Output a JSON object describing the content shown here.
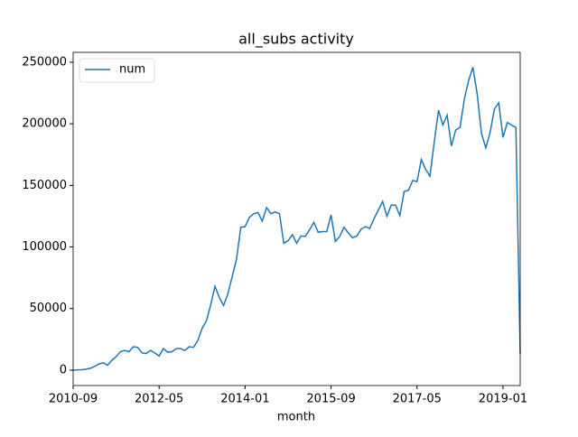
{
  "chart_data": {
    "type": "line",
    "title": "all_subs activity",
    "x_label": "month",
    "x": [
      "2010-09",
      "2010-10",
      "2010-11",
      "2010-12",
      "2011-01",
      "2011-02",
      "2011-03",
      "2011-04",
      "2011-05",
      "2011-06",
      "2011-07",
      "2011-08",
      "2011-09",
      "2011-10",
      "2011-11",
      "2011-12",
      "2012-01",
      "2012-02",
      "2012-03",
      "2012-04",
      "2012-05",
      "2012-06",
      "2012-07",
      "2012-08",
      "2012-09",
      "2012-10",
      "2012-11",
      "2012-12",
      "2013-01",
      "2013-02",
      "2013-03",
      "2013-04",
      "2013-05",
      "2013-06",
      "2013-07",
      "2013-08",
      "2013-09",
      "2013-10",
      "2013-11",
      "2013-12",
      "2014-01",
      "2014-02",
      "2014-03",
      "2014-04",
      "2014-05",
      "2014-06",
      "2014-07",
      "2014-08",
      "2014-09",
      "2014-10",
      "2014-11",
      "2014-12",
      "2015-01",
      "2015-02",
      "2015-03",
      "2015-04",
      "2015-05",
      "2015-06",
      "2015-07",
      "2015-08",
      "2015-09",
      "2015-10",
      "2015-11",
      "2015-12",
      "2016-01",
      "2016-02",
      "2016-03",
      "2016-04",
      "2016-05",
      "2016-06",
      "2016-07",
      "2016-08",
      "2016-09",
      "2016-10",
      "2016-11",
      "2016-12",
      "2017-01",
      "2017-02",
      "2017-03",
      "2017-04",
      "2017-05",
      "2017-06",
      "2017-07",
      "2017-08",
      "2017-09",
      "2017-10",
      "2017-11",
      "2017-12",
      "2018-01",
      "2018-02",
      "2018-03",
      "2018-04",
      "2018-05",
      "2018-06",
      "2018-07",
      "2018-08",
      "2018-09",
      "2018-10",
      "2018-11",
      "2018-12",
      "2019-01",
      "2019-02",
      "2019-03",
      "2019-04",
      "2019-05"
    ],
    "series": [
      {
        "name": "num",
        "color": "#1f77b4",
        "values": [
          0,
          200,
          300,
          800,
          1500,
          3000,
          5000,
          6000,
          4000,
          8000,
          11000,
          15000,
          16000,
          15000,
          19000,
          18500,
          14000,
          13500,
          16000,
          14000,
          11500,
          17500,
          14500,
          15000,
          17500,
          17500,
          16000,
          19000,
          18500,
          24000,
          34000,
          40000,
          53000,
          68000,
          59000,
          52500,
          62000,
          76000,
          90000,
          116000,
          116500,
          124000,
          127000,
          128000,
          121000,
          132000,
          127000,
          128500,
          127000,
          103000,
          105000,
          110000,
          103000,
          109000,
          108500,
          114000,
          120000,
          112000,
          112500,
          112500,
          126000,
          104500,
          108500,
          116000,
          111500,
          107500,
          109000,
          114500,
          116500,
          115000,
          123000,
          130000,
          137000,
          125000,
          134000,
          134000,
          125500,
          145000,
          146000,
          154000,
          153000,
          171000,
          163000,
          157500,
          185000,
          211000,
          199000,
          207000,
          182000,
          195000,
          197000,
          220000,
          235000,
          246000,
          224000,
          192000,
          180500,
          193000,
          212000,
          217000,
          189000,
          201000,
          199000,
          197000,
          13000
        ]
      }
    ],
    "xlim": [
      "2010-09",
      "2019-05"
    ],
    "xticks": [
      "2010-09",
      "2012-05",
      "2014-01",
      "2015-09",
      "2017-05",
      "2019-01"
    ],
    "ylim": [
      -12500,
      258000
    ],
    "yticks": [
      0,
      50000,
      100000,
      150000,
      200000,
      250000
    ],
    "legend": "upper left",
    "grid": false
  }
}
